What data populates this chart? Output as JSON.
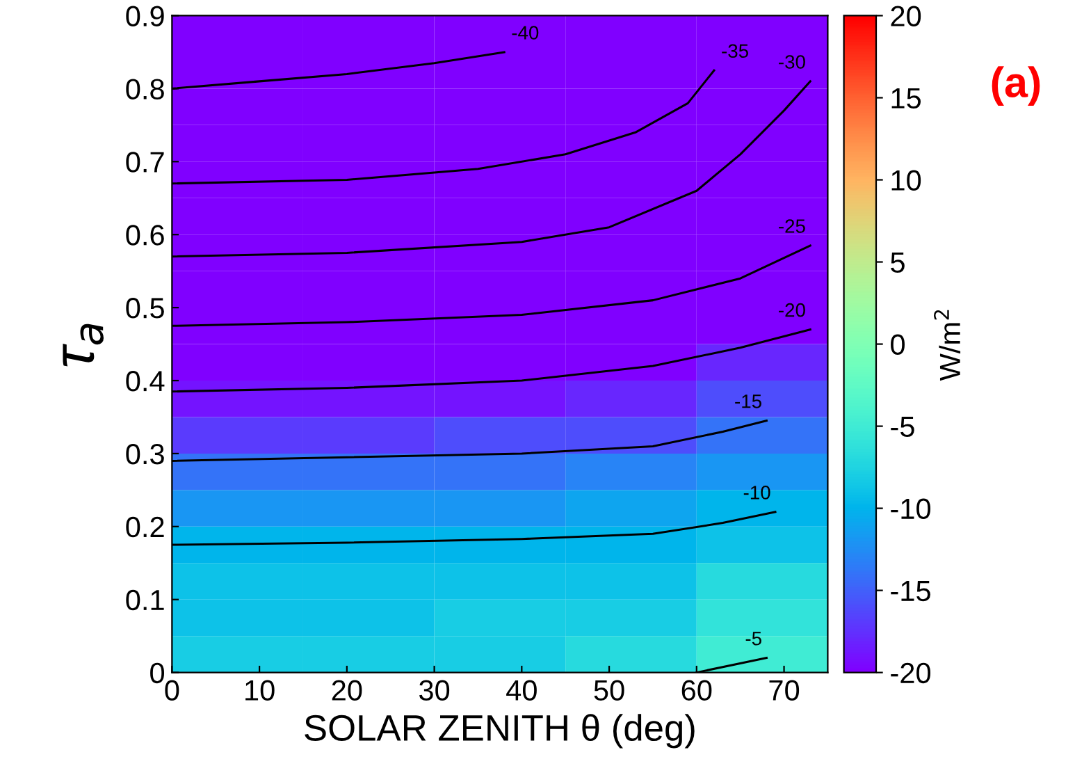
{
  "chart_data": {
    "type": "heatmap",
    "xlabel": "SOLAR ZENITH θ (deg)",
    "ylabel": "τ$_{a}$",
    "clabel": "W/m$^{2}$",
    "x": [
      7.5,
      22.5,
      37.5,
      52.5,
      67.5
    ],
    "y": [
      0.025,
      0.075,
      0.125,
      0.175,
      0.225,
      0.275,
      0.325,
      0.375,
      0.425,
      0.475,
      0.525,
      0.575,
      0.625,
      0.675,
      0.725,
      0.775,
      0.825,
      0.875
    ],
    "cells": [
      [
        -8,
        -8,
        -8,
        -7,
        -5
      ],
      [
        -9,
        -9,
        -8,
        -8,
        -6
      ],
      [
        -9,
        -9,
        -9,
        -9,
        -7
      ],
      [
        -10,
        -10,
        -10,
        -10,
        -9
      ],
      [
        -12,
        -12,
        -12,
        -11,
        -10
      ],
      [
        -14,
        -14,
        -14,
        -13,
        -12
      ],
      [
        -17,
        -17,
        -16,
        -16,
        -14
      ],
      [
        -19,
        -19,
        -19,
        -18,
        -16
      ],
      [
        -22,
        -22,
        -21,
        -20,
        -18
      ],
      [
        -25,
        -24,
        -24,
        -23,
        -20
      ],
      [
        -27,
        -27,
        -27,
        -26,
        -22
      ],
      [
        -30,
        -30,
        -29,
        -28,
        -24
      ],
      [
        -32,
        -32,
        -31,
        -30,
        -26
      ],
      [
        -35,
        -34,
        -34,
        -32,
        -27
      ],
      [
        -37,
        -37,
        -36,
        -34,
        -29
      ],
      [
        -39,
        -39,
        -38,
        -36,
        -31
      ],
      [
        -41,
        -40,
        -40,
        -38,
        -33
      ],
      [
        -42,
        -42,
        -41,
        -40,
        -35
      ]
    ],
    "clim": [
      -20,
      20
    ],
    "cticks": [
      -20,
      -15,
      -10,
      -5,
      0,
      5,
      10,
      15,
      20
    ],
    "xlim": [
      0,
      75
    ],
    "xticks": [
      0,
      10,
      20,
      30,
      40,
      50,
      60,
      70
    ],
    "ylim": [
      0,
      0.9
    ],
    "yticks": [
      0,
      0.1,
      0.2,
      0.3,
      0.4,
      0.5,
      0.6,
      0.7,
      0.8,
      0.9
    ],
    "series": [
      {
        "name": "-40",
        "type": "line",
        "color": "#000000",
        "x": [
          0,
          10,
          20,
          30,
          38
        ],
        "values": [
          0.8,
          0.81,
          0.82,
          0.835,
          0.85
        ]
      },
      {
        "name": "-35",
        "type": "line",
        "color": "#000000",
        "x": [
          0,
          20,
          35,
          45,
          53,
          59,
          62
        ],
        "values": [
          0.67,
          0.675,
          0.69,
          0.71,
          0.74,
          0.78,
          0.825
        ]
      },
      {
        "name": "-30",
        "type": "line",
        "color": "#000000",
        "x": [
          0,
          20,
          40,
          50,
          60,
          65,
          70,
          73
        ],
        "values": [
          0.57,
          0.575,
          0.59,
          0.61,
          0.66,
          0.71,
          0.77,
          0.81
        ]
      },
      {
        "name": "-25",
        "type": "line",
        "color": "#000000",
        "x": [
          0,
          20,
          40,
          55,
          65,
          73
        ],
        "values": [
          0.475,
          0.48,
          0.49,
          0.51,
          0.54,
          0.585
        ]
      },
      {
        "name": "-20",
        "type": "line",
        "color": "#000000",
        "x": [
          0,
          20,
          40,
          55,
          65,
          73
        ],
        "values": [
          0.385,
          0.39,
          0.4,
          0.42,
          0.445,
          0.47
        ]
      },
      {
        "name": "-15",
        "type": "line",
        "color": "#000000",
        "x": [
          0,
          20,
          40,
          55,
          63,
          68
        ],
        "values": [
          0.29,
          0.295,
          0.3,
          0.31,
          0.33,
          0.345
        ]
      },
      {
        "name": "-10",
        "type": "line",
        "color": "#000000",
        "x": [
          0,
          20,
          40,
          55,
          63,
          69
        ],
        "values": [
          0.175,
          0.178,
          0.183,
          0.19,
          0.205,
          0.22
        ]
      },
      {
        "name": "-5",
        "type": "line",
        "color": "#000000",
        "x": [
          60,
          68
        ],
        "values": [
          0.0,
          0.02
        ]
      }
    ],
    "annotations": [
      "(a)"
    ]
  }
}
